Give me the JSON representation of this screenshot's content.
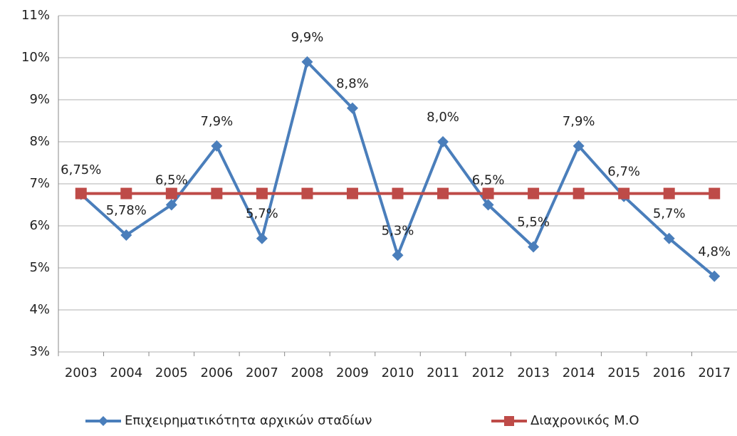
{
  "chart_data": {
    "type": "line",
    "categories": [
      "2003",
      "2004",
      "2005",
      "2006",
      "2007",
      "2008",
      "2009",
      "2010",
      "2011",
      "2012",
      "2013",
      "2014",
      "2015",
      "2016",
      "2017"
    ],
    "series": [
      {
        "name": "Επιχειρηματικότητα αρχικών σταδίων",
        "color": "#4a7ebb",
        "marker": "diamond",
        "values": [
          6.75,
          5.78,
          6.5,
          7.9,
          5.7,
          9.9,
          8.8,
          5.3,
          8.0,
          6.5,
          5.5,
          7.9,
          6.7,
          5.7,
          4.8
        ],
        "value_labels": [
          "6,75%",
          "5,78%",
          "6,5%",
          "7,9%",
          "5,7%",
          "9,9%",
          "8,8%",
          "5,3%",
          "8,0%",
          "6,5%",
          "5,5%",
          "7,9%",
          "6,7%",
          "5,7%",
          "4,8%"
        ]
      },
      {
        "name": "Διαχρονικός Μ.Ο",
        "color": "#be4b48",
        "marker": "square",
        "values": [
          6.77,
          6.77,
          6.77,
          6.77,
          6.77,
          6.77,
          6.77,
          6.77,
          6.77,
          6.77,
          6.77,
          6.77,
          6.77,
          6.77,
          6.77
        ]
      }
    ],
    "ylim": [
      3,
      11
    ],
    "yticks": [
      {
        "value": 3,
        "label": "3%"
      },
      {
        "value": 4,
        "label": "4%"
      },
      {
        "value": 5,
        "label": "5%"
      },
      {
        "value": 6,
        "label": "6%"
      },
      {
        "value": 7,
        "label": "7%"
      },
      {
        "value": 8,
        "label": "8%"
      },
      {
        "value": 9,
        "label": "9%"
      },
      {
        "value": 10,
        "label": "10%"
      },
      {
        "value": 11,
        "label": "11%"
      }
    ],
    "grid": true,
    "legend": "bottom"
  }
}
